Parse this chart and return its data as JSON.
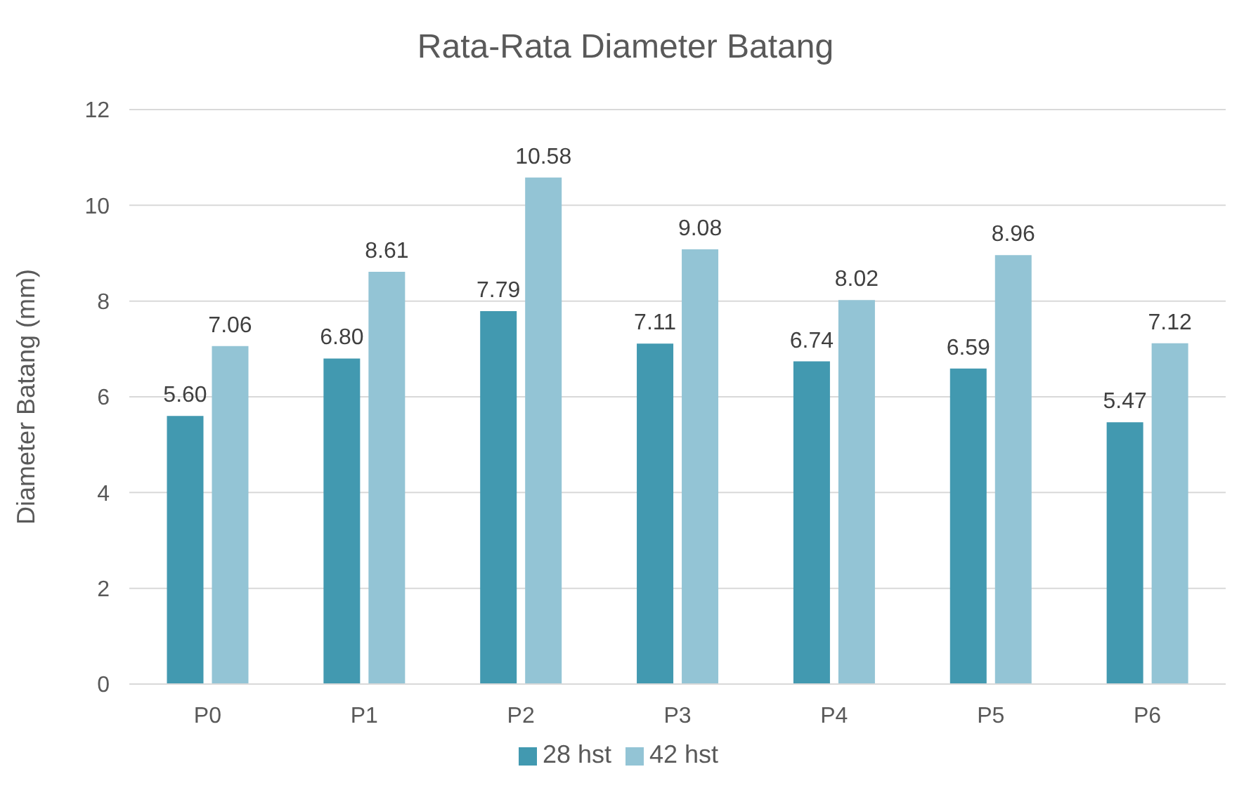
{
  "chart_data": {
    "type": "bar",
    "title": "Rata-Rata Diameter Batang",
    "ylabel": "Diameter Batang (mm)",
    "categories": [
      "P0",
      "P1",
      "P2",
      "P3",
      "P4",
      "P5",
      "P6"
    ],
    "series": [
      {
        "name": "28 hst",
        "color": "#4299b0",
        "values": [
          5.6,
          6.8,
          7.79,
          7.11,
          6.74,
          6.59,
          5.47
        ],
        "value_labels": [
          "5.60",
          "6.80",
          "7.79",
          "7.11",
          "6.74",
          "6.59",
          "5.47"
        ]
      },
      {
        "name": "42 hst",
        "color": "#93c4d5",
        "values": [
          7.06,
          8.61,
          10.58,
          9.08,
          8.02,
          8.96,
          7.12
        ],
        "value_labels": [
          "7.06",
          "8.61",
          "10.58",
          "9.08",
          "8.02",
          "8.96",
          "7.12"
        ]
      }
    ],
    "ylim": [
      0,
      12
    ],
    "yticks": [
      0,
      2,
      4,
      6,
      8,
      10,
      12
    ],
    "grid": "y",
    "legend": "bottom"
  }
}
